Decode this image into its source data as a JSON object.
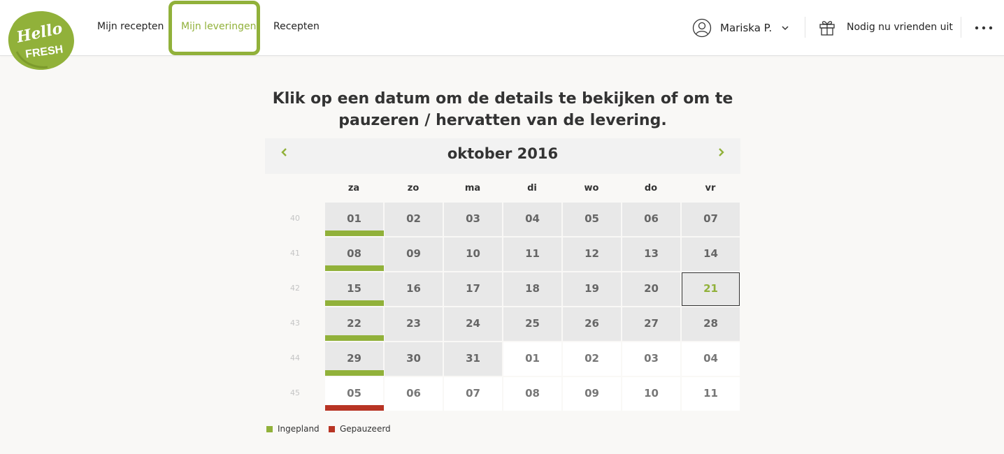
{
  "header": {
    "logo_text_1": "Hello",
    "logo_text_2": "FRESH",
    "nav": [
      {
        "label": "Mijn recepten"
      },
      {
        "label": "Mijn leveringen"
      },
      {
        "label": "Recepten"
      }
    ],
    "user_name": "Mariska P.",
    "invite_label": "Nodig nu vrienden uit"
  },
  "title": {
    "line1": "Klik op een datum om de details te bekijken of om te",
    "line2": "pauzeren / hervatten van de levering."
  },
  "calendar": {
    "month": "oktober 2016",
    "weekdays": [
      "za",
      "zo",
      "ma",
      "di",
      "wo",
      "do",
      "vr"
    ],
    "weeks": [
      {
        "num": "40",
        "days": [
          {
            "d": "01",
            "in": true,
            "status": "scheduled"
          },
          {
            "d": "02",
            "in": true
          },
          {
            "d": "03",
            "in": true
          },
          {
            "d": "04",
            "in": true
          },
          {
            "d": "05",
            "in": true
          },
          {
            "d": "06",
            "in": true
          },
          {
            "d": "07",
            "in": true
          }
        ]
      },
      {
        "num": "41",
        "days": [
          {
            "d": "08",
            "in": true,
            "status": "scheduled"
          },
          {
            "d": "09",
            "in": true
          },
          {
            "d": "10",
            "in": true
          },
          {
            "d": "11",
            "in": true
          },
          {
            "d": "12",
            "in": true
          },
          {
            "d": "13",
            "in": true
          },
          {
            "d": "14",
            "in": true
          }
        ]
      },
      {
        "num": "42",
        "days": [
          {
            "d": "15",
            "in": true,
            "status": "scheduled"
          },
          {
            "d": "16",
            "in": true
          },
          {
            "d": "17",
            "in": true
          },
          {
            "d": "18",
            "in": true
          },
          {
            "d": "19",
            "in": true
          },
          {
            "d": "20",
            "in": true
          },
          {
            "d": "21",
            "in": true,
            "today": true
          }
        ]
      },
      {
        "num": "43",
        "days": [
          {
            "d": "22",
            "in": true,
            "status": "scheduled"
          },
          {
            "d": "23",
            "in": true
          },
          {
            "d": "24",
            "in": true
          },
          {
            "d": "25",
            "in": true
          },
          {
            "d": "26",
            "in": true
          },
          {
            "d": "27",
            "in": true
          },
          {
            "d": "28",
            "in": true
          }
        ]
      },
      {
        "num": "44",
        "days": [
          {
            "d": "29",
            "in": true,
            "status": "scheduled"
          },
          {
            "d": "30",
            "in": true
          },
          {
            "d": "31",
            "in": true
          },
          {
            "d": "01",
            "in": false
          },
          {
            "d": "02",
            "in": false
          },
          {
            "d": "03",
            "in": false
          },
          {
            "d": "04",
            "in": false
          }
        ]
      },
      {
        "num": "45",
        "days": [
          {
            "d": "05",
            "in": false,
            "status": "paused"
          },
          {
            "d": "06",
            "in": false
          },
          {
            "d": "07",
            "in": false
          },
          {
            "d": "08",
            "in": false
          },
          {
            "d": "09",
            "in": false
          },
          {
            "d": "10",
            "in": false
          },
          {
            "d": "11",
            "in": false
          }
        ]
      }
    ]
  },
  "legend": [
    {
      "label": "Ingepland",
      "color": "#91b13a"
    },
    {
      "label": "Gepauzeerd",
      "color": "#b83424"
    }
  ],
  "colors": {
    "accent": "#91b13a",
    "paused": "#b83424"
  }
}
